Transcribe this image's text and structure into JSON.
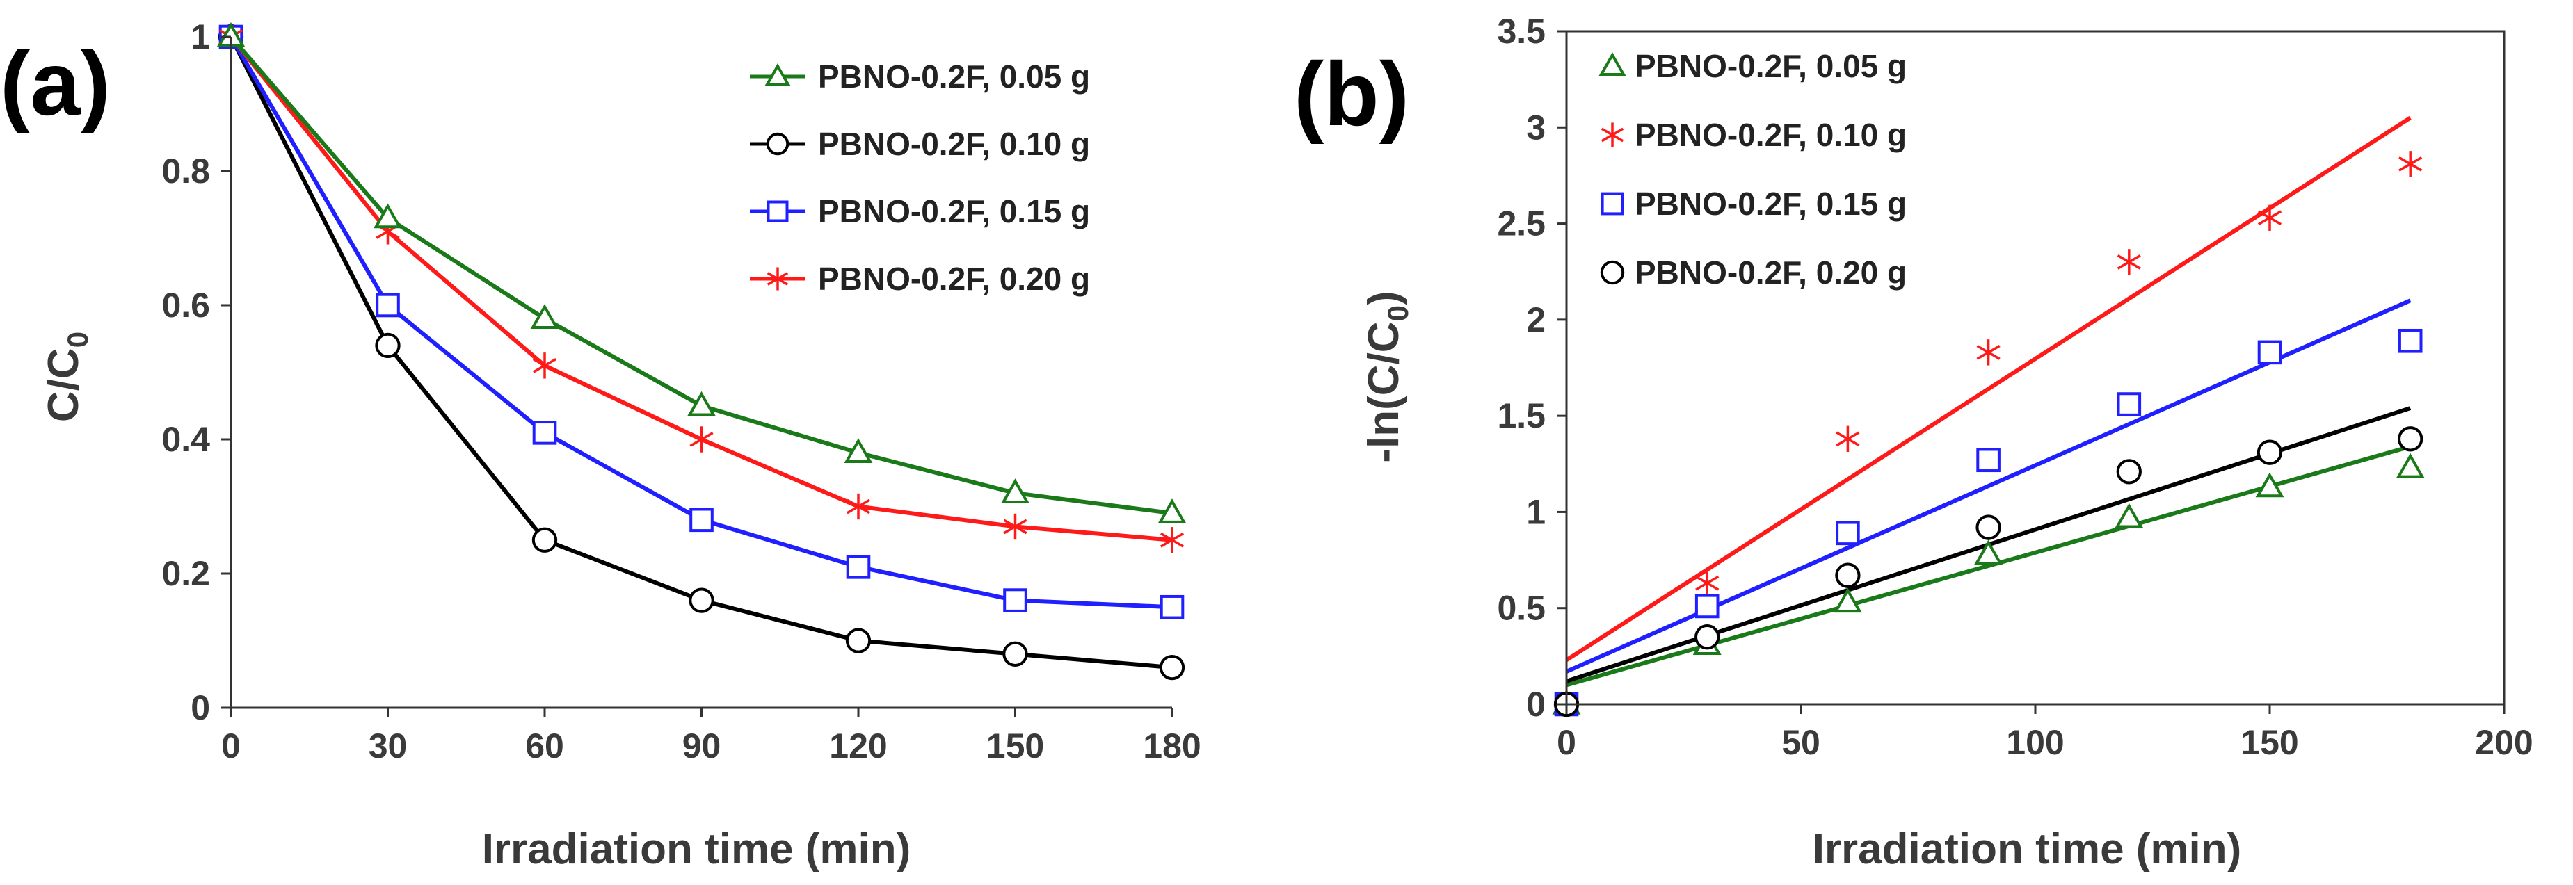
{
  "chart_data": [
    {
      "panel_label": "(a)",
      "type": "line",
      "xlabel": "Irradiation time (min)",
      "ylabel": {
        "main": "C/C",
        "sub": "0"
      },
      "xlim": [
        0,
        180
      ],
      "ylim": [
        0,
        1
      ],
      "xticks": [
        0,
        30,
        60,
        90,
        120,
        150,
        180
      ],
      "yticks": [
        0,
        0.2,
        0.4,
        0.6,
        0.8,
        1
      ],
      "ytick_labels": [
        "0",
        "0.2",
        "0.4",
        "0.6",
        "0.8",
        "1"
      ],
      "legend_position": "top-right",
      "x": [
        0,
        30,
        60,
        90,
        120,
        150,
        180
      ],
      "series": [
        {
          "name": "PBNO-0.2F, 0.05 g",
          "color": "#1a7a1a",
          "marker": "triangle",
          "values": [
            1,
            0.73,
            0.58,
            0.45,
            0.38,
            0.32,
            0.29
          ]
        },
        {
          "name": "PBNO-0.2F, 0.10 g",
          "color": "#000000",
          "marker": "circle",
          "values": [
            1,
            0.54,
            0.25,
            0.16,
            0.1,
            0.08,
            0.06
          ]
        },
        {
          "name": "PBNO-0.2F, 0.15 g",
          "color": "#1f1fff",
          "marker": "square",
          "values": [
            1,
            0.6,
            0.41,
            0.28,
            0.21,
            0.16,
            0.15
          ]
        },
        {
          "name": "PBNO-0.2F, 0.20 g",
          "color": "#ff1a1a",
          "marker": "asterisk",
          "values": [
            1,
            0.71,
            0.51,
            0.4,
            0.3,
            0.27,
            0.25
          ]
        }
      ]
    },
    {
      "panel_label": "(b)",
      "type": "scatter",
      "xlabel": "Irradiation time (min)",
      "ylabel": {
        "pre": "-ln(C/C",
        "sub": "0",
        "post": ")"
      },
      "xlim": [
        0,
        200
      ],
      "ylim": [
        0,
        3.5
      ],
      "xticks": [
        0,
        50,
        100,
        150,
        200
      ],
      "yticks": [
        0,
        0.5,
        1,
        1.5,
        2,
        2.5,
        3,
        3.5
      ],
      "ytick_labels": [
        "0",
        "0.5",
        "1",
        "1.5",
        "2",
        "2.5",
        "3",
        "3.5"
      ],
      "legend_position": "top-left",
      "x": [
        0,
        30,
        60,
        90,
        120,
        150,
        180
      ],
      "series": [
        {
          "name": "PBNO-0.2F, 0.05 g",
          "color": "#1a7a1a",
          "marker": "triangle",
          "values": [
            0,
            0.31,
            0.53,
            0.78,
            0.97,
            1.13,
            1.23
          ],
          "fit": [
            0.1,
            1.34
          ]
        },
        {
          "name": "PBNO-0.2F, 0.10 g",
          "color": "#ff1a1a",
          "marker": "asterisk",
          "values": [
            0,
            0.63,
            1.38,
            1.83,
            2.3,
            2.53,
            2.81
          ],
          "fit": [
            0.23,
            3.05
          ]
        },
        {
          "name": "PBNO-0.2F, 0.15 g",
          "color": "#1f1fff",
          "marker": "square",
          "values": [
            0,
            0.51,
            0.89,
            1.27,
            1.56,
            1.83,
            1.89
          ],
          "fit": [
            0.17,
            2.1
          ]
        },
        {
          "name": "PBNO-0.2F, 0.20 g",
          "color": "#000000",
          "marker": "circle",
          "values": [
            0,
            0.35,
            0.67,
            0.92,
            1.21,
            1.31,
            1.38
          ],
          "fit": [
            0.12,
            1.54
          ]
        }
      ]
    }
  ]
}
